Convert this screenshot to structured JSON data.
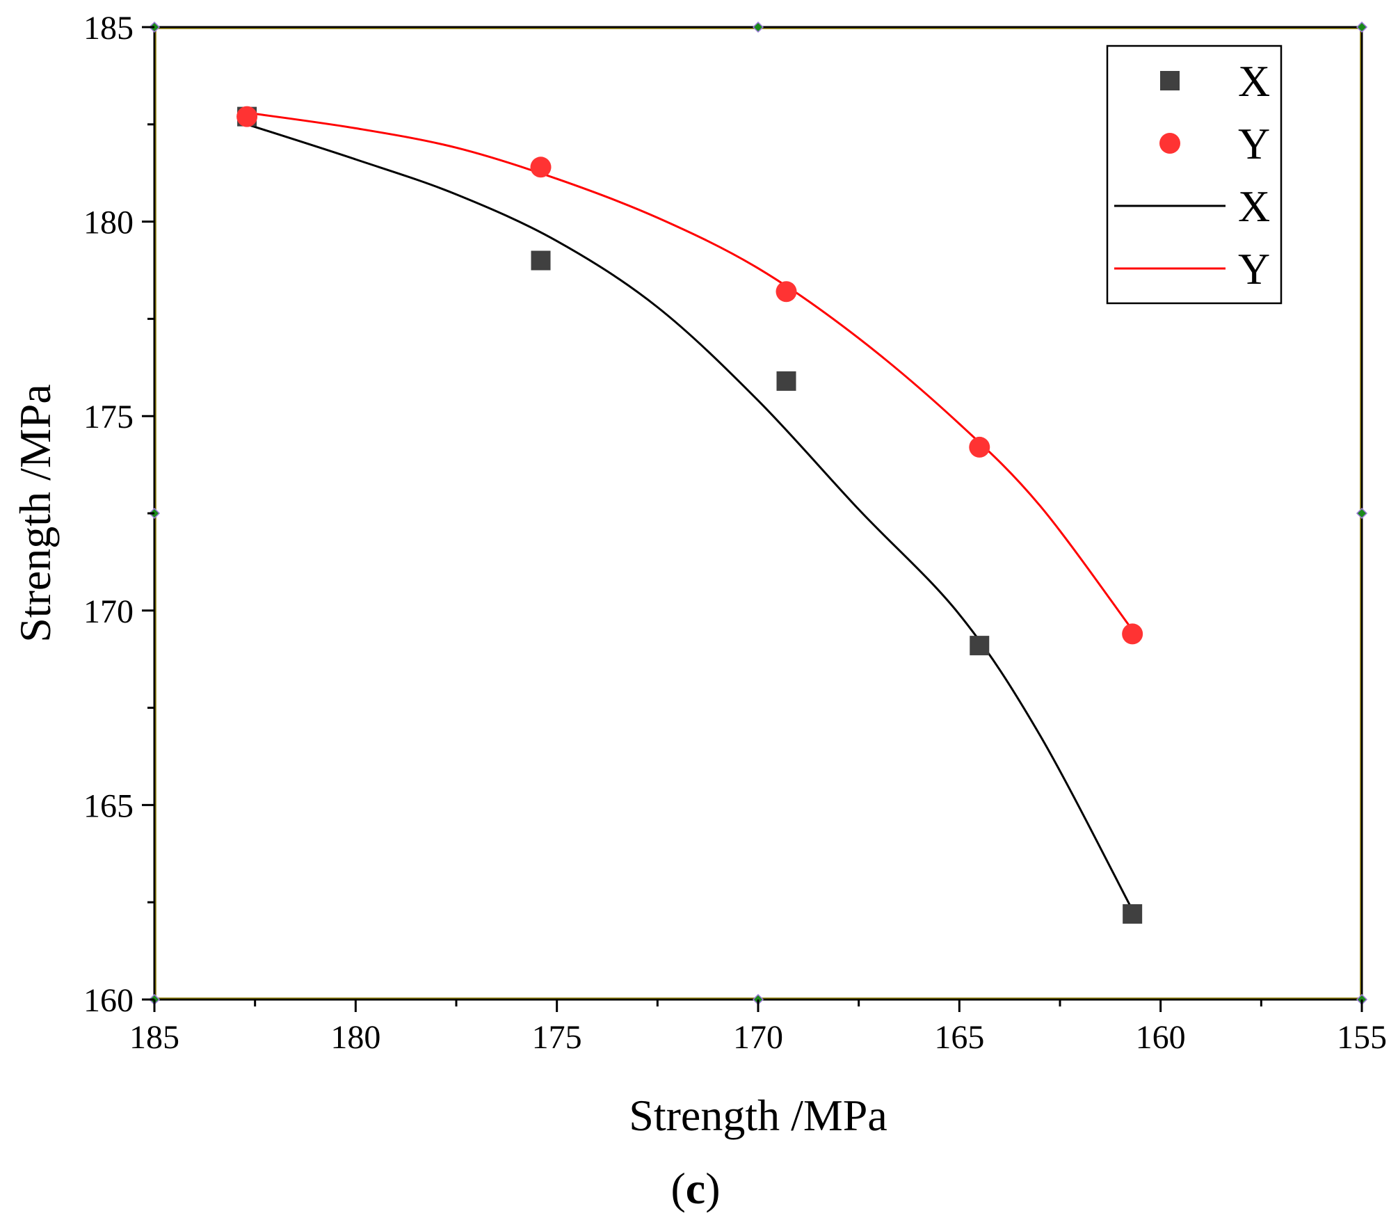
{
  "chart_data": {
    "type": "scatter",
    "title": "",
    "xlabel": "Strength /MPa",
    "ylabel": "Strength /MPa",
    "xlim": [
      185,
      155
    ],
    "ylim": [
      160,
      185
    ],
    "x_axis_reversed": true,
    "x_ticks": [
      "185",
      "180",
      "175",
      "170",
      "165",
      "160",
      "155"
    ],
    "y_ticks": [
      "160",
      "165",
      "170",
      "175",
      "180",
      "185"
    ],
    "x_tick_values": [
      185,
      180,
      175,
      170,
      165,
      160,
      155
    ],
    "y_tick_values": [
      160,
      165,
      170,
      175,
      180,
      185
    ],
    "grid": false,
    "legend_position": "top-right",
    "series": [
      {
        "name": "X",
        "kind": "scatter",
        "marker": "square",
        "color": "#404040",
        "x": [
          182.7,
          175.4,
          169.3,
          164.5,
          160.7
        ],
        "y": [
          182.7,
          179.0,
          175.9,
          169.1,
          162.2
        ]
      },
      {
        "name": "Y",
        "kind": "scatter",
        "marker": "circle",
        "color": "#ff3333",
        "x": [
          182.7,
          175.4,
          169.3,
          164.5,
          160.7
        ],
        "y": [
          182.7,
          181.4,
          178.2,
          174.2,
          169.4
        ]
      },
      {
        "name": "X",
        "kind": "line",
        "color": "#000000",
        "x": [
          182.7,
          180.0,
          177.5,
          175.0,
          172.5,
          170.0,
          167.5,
          165.0,
          163.0,
          160.7
        ],
        "y": [
          182.5,
          181.6,
          180.7,
          179.5,
          177.8,
          175.4,
          172.6,
          169.9,
          166.8,
          162.3
        ]
      },
      {
        "name": "Y",
        "kind": "line",
        "color": "#ff0000",
        "x": [
          182.7,
          180.0,
          177.5,
          175.0,
          172.5,
          170.0,
          167.5,
          165.0,
          163.0,
          160.7
        ],
        "y": [
          182.8,
          182.4,
          181.9,
          181.1,
          180.1,
          178.8,
          177.0,
          174.8,
          172.7,
          169.5
        ]
      }
    ],
    "panel_label": {
      "open": "(",
      "letter": "c",
      "close": ")"
    }
  }
}
